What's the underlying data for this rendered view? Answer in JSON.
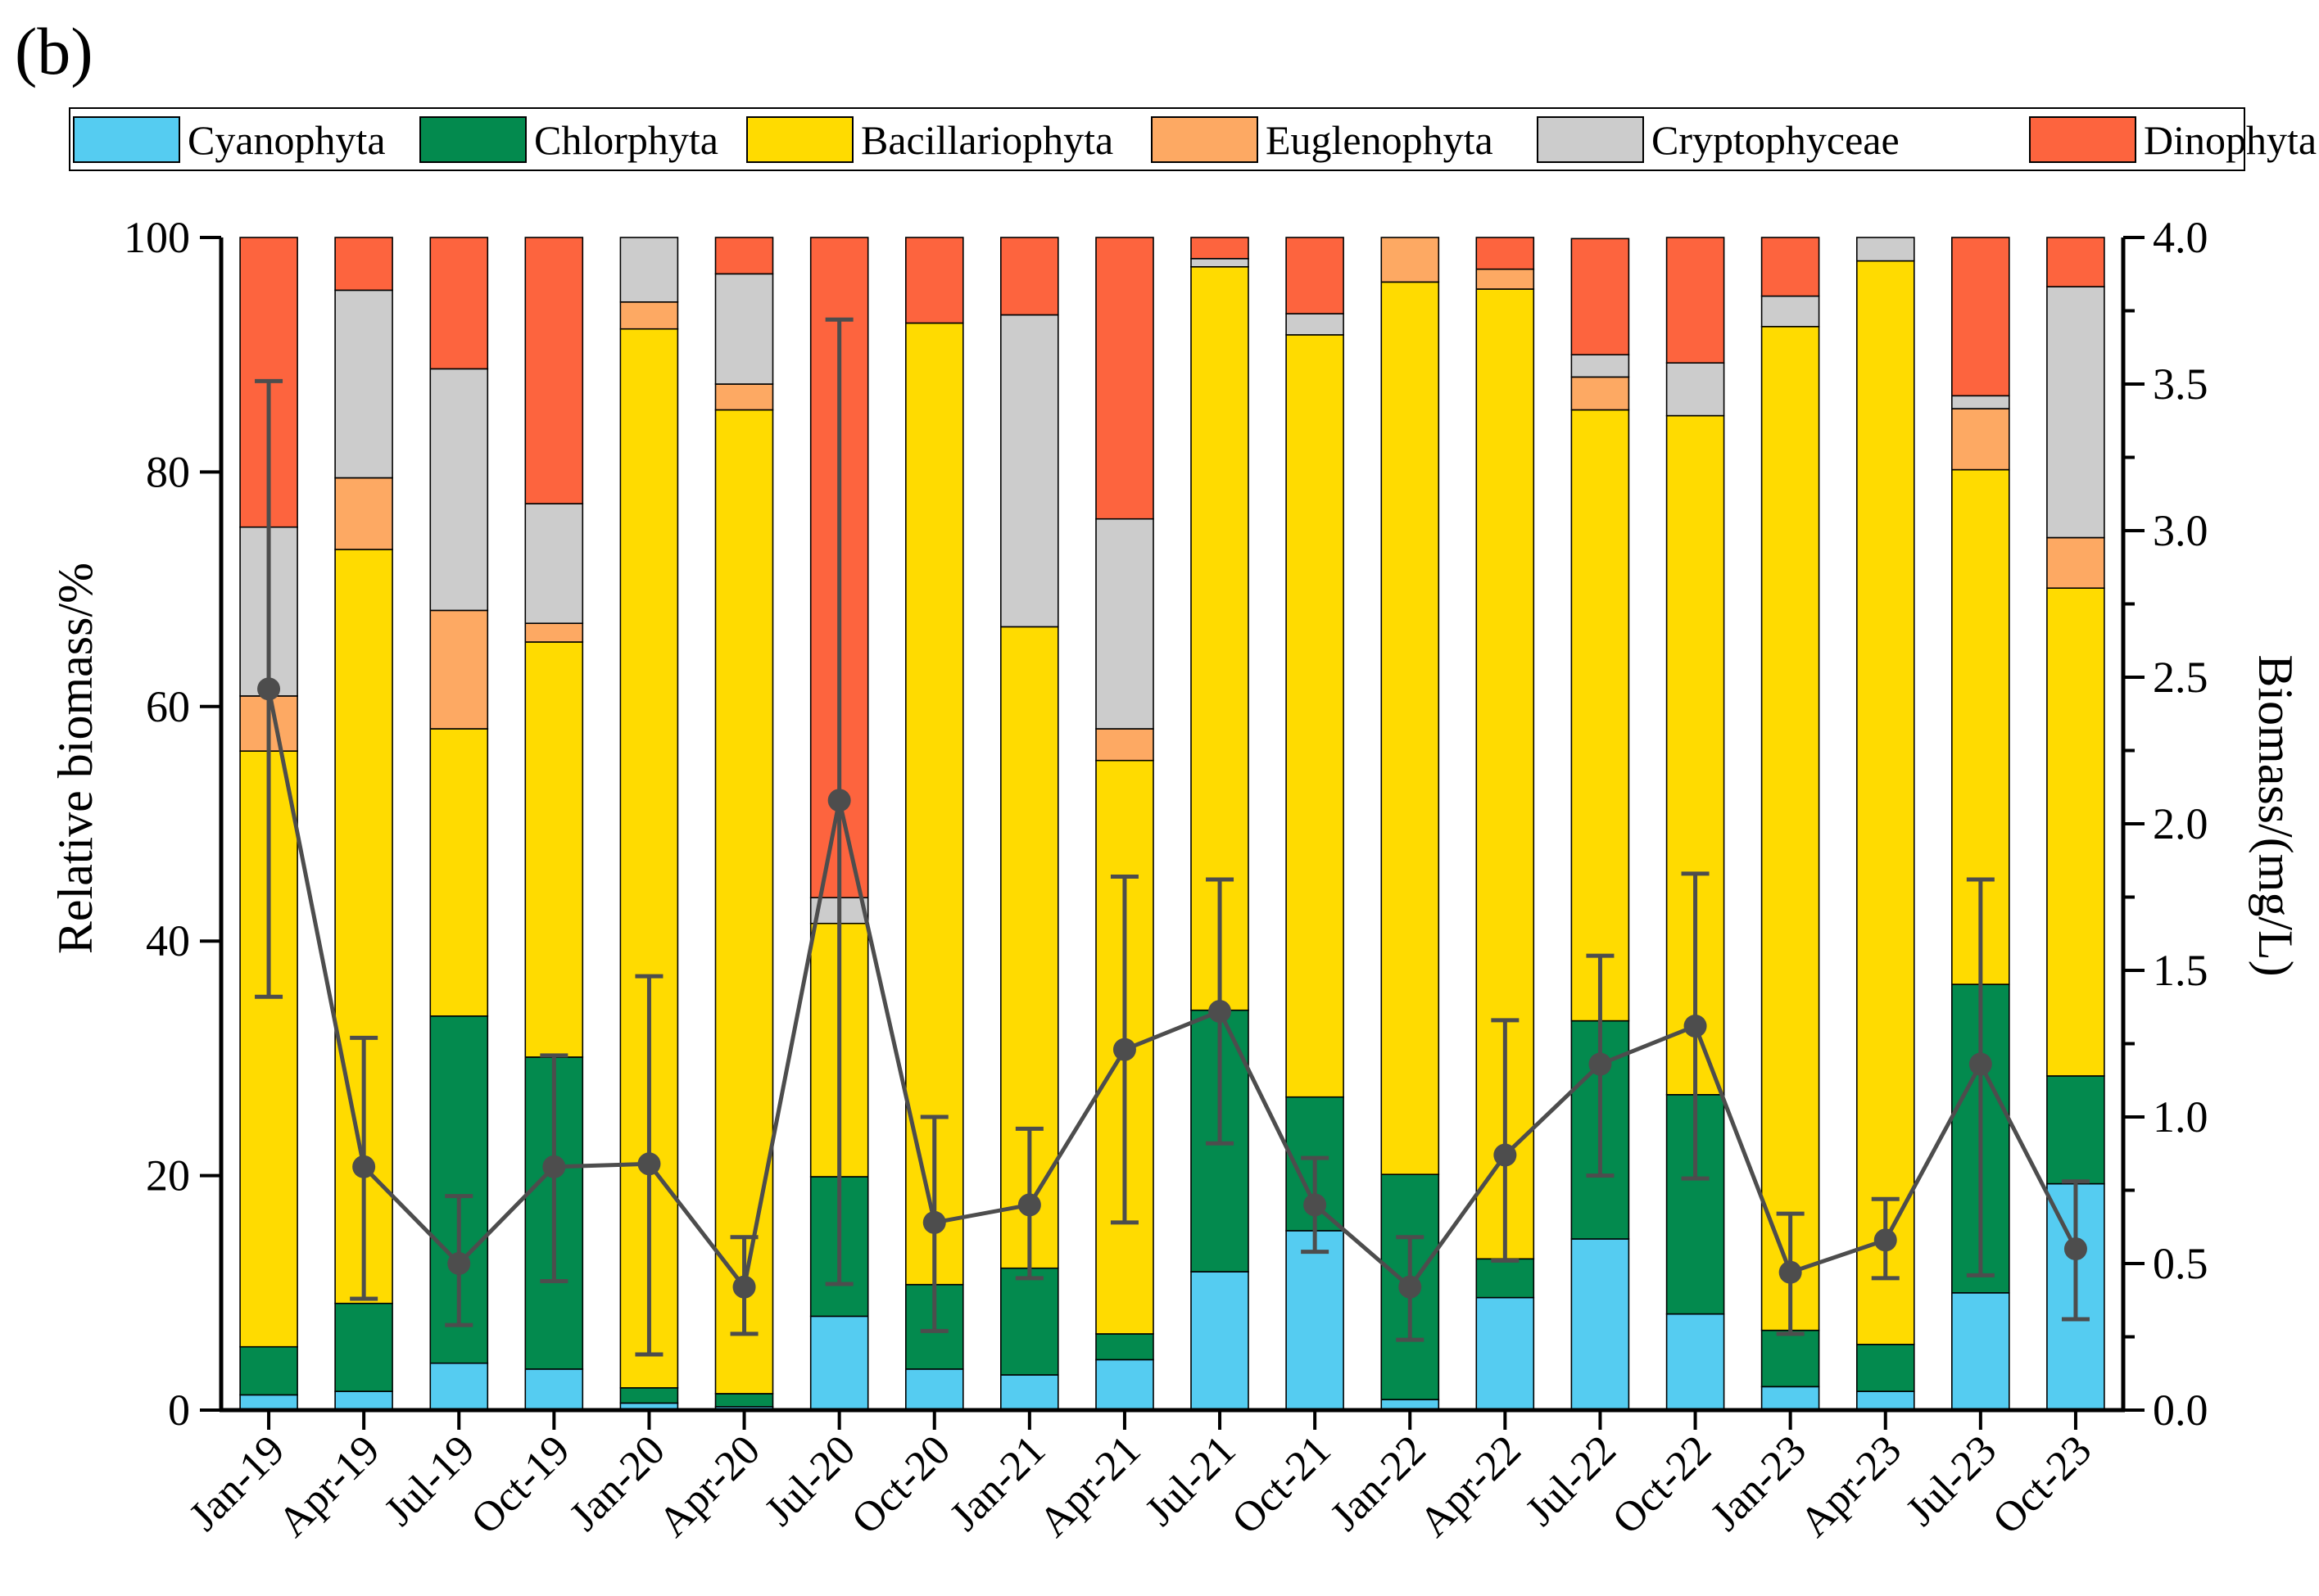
{
  "panel_label": "(b)",
  "chart_data": {
    "type": "bar",
    "stacked": true,
    "categories": [
      "Jan-19",
      "Apr-19",
      "Jul-19",
      "Oct-19",
      "Jan-20",
      "Apr-20",
      "Jul-20",
      "Oct-20",
      "Jan-21",
      "Apr-21",
      "Jul-21",
      "Oct-21",
      "Jan-22",
      "Apr-22",
      "Jul-22",
      "Oct-22",
      "Jan-23",
      "Apr-23",
      "Jul-23",
      "Oct-23"
    ],
    "ylabel": "Relative biomass/%",
    "ylim": [
      0,
      100
    ],
    "yticks": [
      "0",
      "20",
      "40",
      "60",
      "80",
      "100"
    ],
    "y2label": "Biomass/(mg/L)",
    "y2lim": [
      0,
      4
    ],
    "y2ticks": [
      "0.0",
      "0.5",
      "1.0",
      "1.5",
      "2.0",
      "2.5",
      "3.0",
      "3.5",
      "4.0"
    ],
    "legend_position": "top",
    "series": [
      {
        "name": "Cyanophyta",
        "color": "#55CCF1",
        "values": [
          1.3,
          1.6,
          4.0,
          3.5,
          0.6,
          0.3,
          8.0,
          3.5,
          3.0,
          4.3,
          11.8,
          15.3,
          0.9,
          9.6,
          14.6,
          8.2,
          2.0,
          1.6,
          10.0,
          19.3
        ]
      },
      {
        "name": "Chlorphyta",
        "color": "#038A4E",
        "values": [
          4.1,
          7.5,
          29.6,
          26.6,
          1.3,
          1.1,
          11.9,
          7.2,
          9.1,
          2.2,
          22.3,
          11.4,
          19.2,
          3.3,
          18.6,
          18.7,
          4.8,
          4.0,
          26.3,
          9.2
        ]
      },
      {
        "name": "Bacillariophyta",
        "color": "#FFDB00",
        "values": [
          50.8,
          64.3,
          24.5,
          35.4,
          90.3,
          83.9,
          21.6,
          82.0,
          54.7,
          48.9,
          63.4,
          65.0,
          76.1,
          82.7,
          52.1,
          57.9,
          85.6,
          92.4,
          43.9,
          41.6
        ]
      },
      {
        "name": "Euglenophyta",
        "color": "#FDA963",
        "values": [
          4.7,
          6.1,
          10.1,
          1.6,
          2.3,
          2.2,
          0.0,
          0.0,
          0.0,
          2.7,
          0.0,
          0.0,
          3.8,
          1.7,
          2.8,
          0.0,
          0.0,
          0.0,
          5.2,
          4.3
        ]
      },
      {
        "name": "Cryptophyceae",
        "color": "#CCCCCC",
        "values": [
          14.4,
          16.0,
          20.6,
          10.2,
          5.5,
          9.4,
          2.2,
          0.0,
          26.6,
          17.9,
          0.7,
          1.8,
          0.0,
          0.0,
          1.9,
          4.5,
          2.6,
          2.0,
          1.1,
          21.4
        ]
      },
      {
        "name": "Dinophyta",
        "color": "#FD643E",
        "values": [
          24.7,
          4.5,
          11.2,
          22.7,
          0.0,
          3.1,
          56.3,
          7.3,
          6.6,
          24.0,
          1.8,
          6.5,
          0.0,
          2.7,
          9.9,
          10.7,
          5.0,
          0.0,
          13.5,
          4.2
        ]
      }
    ],
    "line_series": {
      "name": "Biomass",
      "axis": "right",
      "color": "#4D4D4D",
      "values": [
        2.46,
        0.83,
        0.5,
        0.83,
        0.84,
        0.42,
        2.08,
        0.64,
        0.7,
        1.23,
        1.36,
        0.7,
        0.42,
        0.87,
        1.18,
        1.31,
        0.47,
        0.58,
        1.18,
        0.55
      ],
      "error_low": [
        1.41,
        0.38,
        0.29,
        0.44,
        0.19,
        0.26,
        0.43,
        0.27,
        0.45,
        0.64,
        0.91,
        0.54,
        0.24,
        0.51,
        0.8,
        0.79,
        0.26,
        0.45,
        0.46,
        0.31
      ],
      "error_high": [
        3.51,
        1.27,
        0.73,
        1.21,
        1.48,
        0.59,
        3.72,
        1.0,
        0.96,
        1.82,
        1.81,
        0.86,
        0.59,
        1.33,
        1.55,
        1.83,
        0.67,
        0.72,
        1.81,
        0.78
      ]
    }
  }
}
